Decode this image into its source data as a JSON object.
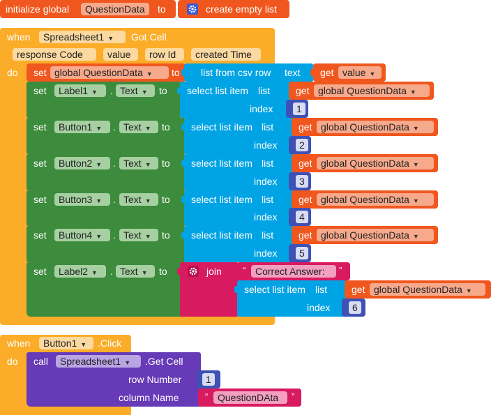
{
  "init": {
    "prefix": "initialize global",
    "name": "QuestionData",
    "to": "to",
    "value": "create empty list"
  },
  "event1": {
    "when": "when",
    "component": "Spreadsheet1",
    "event": "Got Cell",
    "params": [
      "response Code",
      "value",
      "row Id",
      "created Time"
    ],
    "do": "do",
    "set_global": {
      "set": "set",
      "name": "global QuestionData",
      "to": "to",
      "func": "list from csv row",
      "text": "text",
      "get": "get",
      "var": "value"
    },
    "setters": [
      {
        "set": "set",
        "component": "Label1",
        "dot": ".",
        "prop": "Text",
        "to": "to",
        "select": "select list item",
        "list": "list",
        "get": "get",
        "var": "global QuestionData",
        "index_label": "index",
        "index": "1"
      },
      {
        "set": "set",
        "component": "Button1",
        "dot": ".",
        "prop": "Text",
        "to": "to",
        "select": "select list item",
        "list": "list",
        "get": "get",
        "var": "global QuestionData",
        "index_label": "index",
        "index": "2"
      },
      {
        "set": "set",
        "component": "Button2",
        "dot": ".",
        "prop": "Text",
        "to": "to",
        "select": "select list item",
        "list": "list",
        "get": "get",
        "var": "global QuestionData",
        "index_label": "index",
        "index": "3"
      },
      {
        "set": "set",
        "component": "Button3",
        "dot": ".",
        "prop": "Text",
        "to": "to",
        "select": "select list item",
        "list": "list",
        "get": "get",
        "var": "global QuestionData",
        "index_label": "index",
        "index": "4"
      },
      {
        "set": "set",
        "component": "Button4",
        "dot": ".",
        "prop": "Text",
        "to": "to",
        "select": "select list item",
        "list": "list",
        "get": "get",
        "var": "global QuestionData",
        "index_label": "index",
        "index": "5"
      }
    ],
    "label2": {
      "set": "set",
      "component": "Label2",
      "dot": ".",
      "prop": "Text",
      "to": "to",
      "join": "join",
      "text": "Correct Answer:",
      "select": "select list item",
      "list": "list",
      "get": "get",
      "var": "global QuestionData",
      "index_label": "index",
      "index": "6"
    }
  },
  "event2": {
    "when": "when",
    "component": "Button1",
    "event": ".Click",
    "do": "do",
    "call": "call",
    "target": "Spreadsheet1",
    "method": ".Get Cell",
    "row_label": "row Number",
    "row_value": "1",
    "col_label": "column Name",
    "col_value": "QuestionDAta"
  },
  "colors": {
    "variable": "#f0571e",
    "event": "#fbad2a",
    "setter": "#3d8b3d",
    "list": "#00a4e4",
    "math": "#3f51b5",
    "text": "#d81b60",
    "procedure": "#673ab7"
  },
  "quote_open": "“",
  "quote_close": "”",
  "dropdown": "▼"
}
